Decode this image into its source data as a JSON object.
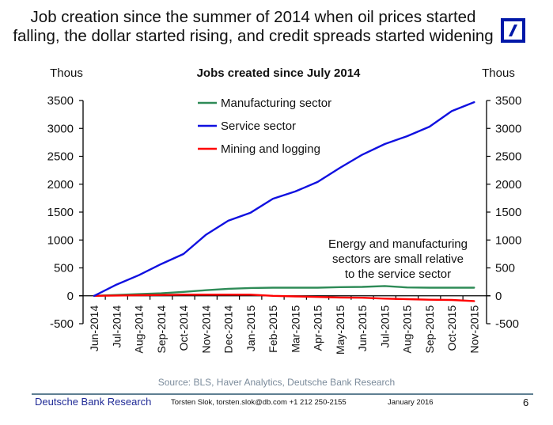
{
  "slide": {
    "title_line1": "Job creation since the summer of 2014 when oil prices started",
    "title_line2": "falling, the dollar started rising, and credit spreads started widening",
    "logo": "deutsche-bank-slash-logo",
    "source": "Source: BLS, Haver Analytics, Deutsche Bank Research",
    "footer": {
      "brand": "Deutsche Bank Research",
      "contact": "Torsten Slok, torsten.slok@db.com  +1 212 250-2155",
      "date": "January 2016",
      "page_number": "6"
    }
  },
  "chart_data": {
    "type": "line",
    "title": "Jobs created since July 2014",
    "ylabel_left": "Thous",
    "ylabel_right": "Thous",
    "xlabel": "",
    "ylim": [
      -500,
      3500
    ],
    "yticks": [
      -500,
      0,
      500,
      1000,
      1500,
      2000,
      2500,
      3000,
      3500
    ],
    "grid": false,
    "legend_position": "top-center",
    "categories": [
      "Jun-2014",
      "Jul-2014",
      "Aug-2014",
      "Sep-2014",
      "Oct-2014",
      "Nov-2014",
      "Dec-2014",
      "Jan-2015",
      "Feb-2015",
      "Mar-2015",
      "Apr-2015",
      "May-2015",
      "Jun-2015",
      "Jul-2015",
      "Aug-2015",
      "Sep-2015",
      "Oct-2015",
      "Nov-2015"
    ],
    "series": [
      {
        "name": "Manufacturing sector",
        "color": "#2e8b57",
        "values": [
          0,
          15,
          30,
          45,
          70,
          100,
          125,
          140,
          145,
          145,
          145,
          155,
          160,
          175,
          150,
          145,
          145,
          145
        ]
      },
      {
        "name": "Service sector",
        "color": "#1010e0",
        "values": [
          0,
          200,
          370,
          570,
          750,
          1095,
          1345,
          1490,
          1740,
          1870,
          2040,
          2295,
          2530,
          2720,
          2860,
          3030,
          3310,
          3470
        ]
      },
      {
        "name": "Mining and logging",
        "color": "#ff0000",
        "values": [
          0,
          5,
          10,
          15,
          20,
          20,
          20,
          20,
          0,
          -10,
          -20,
          -30,
          -35,
          -50,
          -60,
          -70,
          -75,
          -95
        ]
      }
    ],
    "annotation": [
      "Energy and manufacturing",
      "sectors are small relative",
      "to the service sector"
    ]
  }
}
